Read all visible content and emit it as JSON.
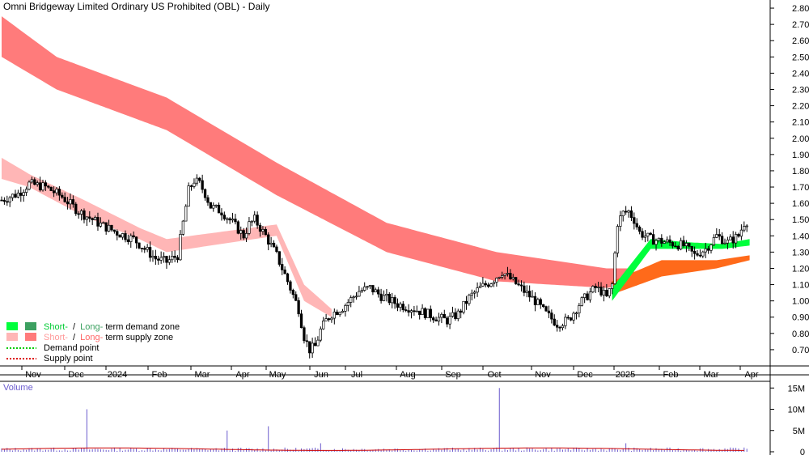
{
  "chart_data": [
    {
      "type": "candlestick",
      "title": "Omni Bridgeway Limited Ordinary US Prohibited (OBL) - Daily",
      "ylim": [
        0.6,
        2.85
      ],
      "y_ticks": [
        "2.80",
        "2.70",
        "2.60",
        "2.50",
        "2.40",
        "2.30",
        "2.20",
        "2.10",
        "2.00",
        "1.90",
        "1.80",
        "1.70",
        "1.60",
        "1.50",
        "1.40",
        "1.30",
        "1.20",
        "1.10",
        "1.00",
        "0.90",
        "0.80",
        "0.70"
      ],
      "x_ticks": [
        "Nov",
        "Dec",
        "2024",
        "Feb",
        "Mar",
        "Apr",
        "May",
        "Jun",
        "Jul",
        "Aug",
        "Sep",
        "Oct",
        "Nov",
        "Dec",
        "2025",
        "Feb",
        "Mar",
        "Apr"
      ],
      "price_path": [
        [
          0,
          1.62
        ],
        [
          6,
          1.66
        ],
        [
          10,
          1.72
        ],
        [
          16,
          1.7
        ],
        [
          22,
          1.64
        ],
        [
          28,
          1.55
        ],
        [
          36,
          1.47
        ],
        [
          42,
          1.42
        ],
        [
          48,
          1.38
        ],
        [
          52,
          1.32
        ],
        [
          56,
          1.26
        ],
        [
          60,
          1.24
        ],
        [
          64,
          1.28
        ],
        [
          66,
          1.48
        ],
        [
          68,
          1.68
        ],
        [
          70,
          1.74
        ],
        [
          72,
          1.72
        ],
        [
          74,
          1.66
        ],
        [
          76,
          1.58
        ],
        [
          80,
          1.55
        ],
        [
          84,
          1.48
        ],
        [
          88,
          1.4
        ],
        [
          90,
          1.47
        ],
        [
          92,
          1.5
        ],
        [
          96,
          1.4
        ],
        [
          100,
          1.28
        ],
        [
          104,
          1.12
        ],
        [
          108,
          0.95
        ],
        [
          110,
          0.78
        ],
        [
          112,
          0.7
        ],
        [
          114,
          0.72
        ],
        [
          116,
          0.82
        ],
        [
          118,
          0.88
        ],
        [
          120,
          0.92
        ],
        [
          124,
          0.96
        ],
        [
          130,
          1.06
        ],
        [
          134,
          1.08
        ],
        [
          138,
          1.03
        ],
        [
          144,
          0.98
        ],
        [
          150,
          0.95
        ],
        [
          158,
          0.9
        ],
        [
          162,
          0.88
        ],
        [
          166,
          0.92
        ],
        [
          170,
          1.02
        ],
        [
          174,
          1.08
        ],
        [
          178,
          1.12
        ],
        [
          182,
          1.18
        ],
        [
          186,
          1.12
        ],
        [
          190,
          1.06
        ],
        [
          194,
          1.0
        ],
        [
          198,
          0.92
        ],
        [
          202,
          0.86
        ],
        [
          206,
          0.88
        ],
        [
          210,
          0.98
        ],
        [
          214,
          1.05
        ],
        [
          216,
          1.08
        ],
        [
          218,
          1.06
        ],
        [
          220,
          1.02
        ],
        [
          222,
          1.1
        ],
        [
          224,
          1.48
        ],
        [
          226,
          1.54
        ],
        [
          228,
          1.55
        ],
        [
          230,
          1.5
        ],
        [
          232,
          1.42
        ],
        [
          236,
          1.38
        ],
        [
          242,
          1.36
        ],
        [
          248,
          1.34
        ],
        [
          252,
          1.28
        ],
        [
          256,
          1.32
        ],
        [
          260,
          1.4
        ],
        [
          264,
          1.36
        ],
        [
          268,
          1.4
        ],
        [
          270,
          1.48
        ],
        [
          272,
          1.5
        ]
      ],
      "long_supply_zone_upper": [
        [
          0,
          2.75
        ],
        [
          20,
          2.5
        ],
        [
          60,
          2.25
        ],
        [
          100,
          1.85
        ],
        [
          140,
          1.48
        ],
        [
          180,
          1.3
        ],
        [
          220,
          1.2
        ],
        [
          230,
          1.2
        ]
      ],
      "long_supply_zone_lower": [
        [
          0,
          2.5
        ],
        [
          20,
          2.3
        ],
        [
          60,
          2.05
        ],
        [
          100,
          1.65
        ],
        [
          140,
          1.3
        ],
        [
          180,
          1.12
        ],
        [
          220,
          1.08
        ],
        [
          230,
          1.1
        ]
      ],
      "short_supply_zone_upper": [
        [
          0,
          1.88
        ],
        [
          10,
          1.78
        ],
        [
          30,
          1.62
        ],
        [
          50,
          1.45
        ],
        [
          60,
          1.38
        ],
        [
          100,
          1.47
        ],
        [
          110,
          1.1
        ],
        [
          120,
          0.95
        ]
      ],
      "short_supply_zone_lower": [
        [
          0,
          1.75
        ],
        [
          10,
          1.7
        ],
        [
          30,
          1.52
        ],
        [
          50,
          1.38
        ],
        [
          60,
          1.3
        ],
        [
          100,
          1.4
        ],
        [
          110,
          1.0
        ],
        [
          120,
          0.9
        ]
      ],
      "long_demand_zone_upper": [
        [
          222,
          1.12
        ],
        [
          240,
          1.25
        ],
        [
          260,
          1.25
        ],
        [
          272,
          1.28
        ]
      ],
      "long_demand_zone_lower": [
        [
          222,
          1.04
        ],
        [
          240,
          1.15
        ],
        [
          260,
          1.2
        ],
        [
          272,
          1.25
        ]
      ],
      "short_demand_zone_upper": [
        [
          222,
          1.08
        ],
        [
          236,
          1.38
        ],
        [
          250,
          1.36
        ],
        [
          262,
          1.35
        ],
        [
          272,
          1.38
        ]
      ],
      "short_demand_zone_lower": [
        [
          222,
          1.0
        ],
        [
          236,
          1.32
        ],
        [
          250,
          1.32
        ],
        [
          262,
          1.32
        ],
        [
          272,
          1.34
        ]
      ],
      "legend": {
        "placement": "bottom-left",
        "demand_zone_short": "Short-",
        "demand_zone_sep": "/",
        "demand_zone_long": "Long-",
        "demand_zone_suffix": "term demand zone",
        "supply_zone_short": "Short-",
        "supply_zone_sep": "/",
        "supply_zone_long": "Long-",
        "supply_zone_suffix": "term supply zone",
        "demand_point": "Demand point",
        "supply_point": "Supply point"
      },
      "colors": {
        "long_supply": "#ff7b7b",
        "short_supply": "#ffb6b6",
        "short_demand": "#00ff3c",
        "long_demand": "#3ca060",
        "orange_zone": "#ff6a1a",
        "candle": "#000000",
        "demand_point": "#00cc00",
        "supply_point": "#dd0000"
      }
    },
    {
      "type": "bar",
      "title": "Volume",
      "y_ticks": [
        "15M",
        "10M",
        "5M",
        "0"
      ],
      "ylim": [
        0,
        16
      ],
      "volume_spikes_millions": [
        [
          31,
          10
        ],
        [
          82,
          5
        ],
        [
          97,
          6
        ],
        [
          116,
          2
        ],
        [
          181,
          15
        ],
        [
          227,
          2
        ]
      ],
      "colors": {
        "bar": "#6a5acd",
        "avg": "#cc0000"
      }
    }
  ]
}
